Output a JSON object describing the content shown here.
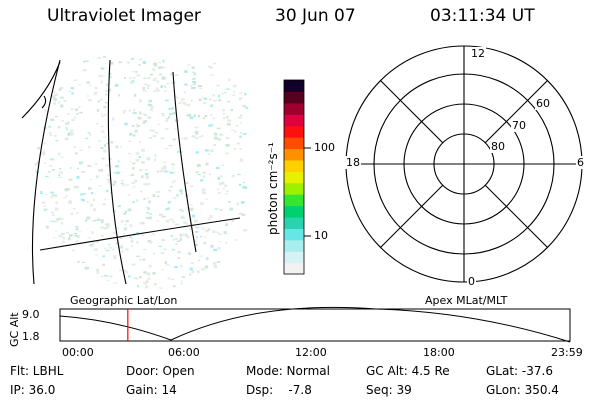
{
  "header": {
    "instrument": "Ultraviolet Imager",
    "date": "30 Jun 07",
    "time": "03:11:34 UT"
  },
  "colorbar": {
    "unit_label": "photon cm⁻²s⁻¹",
    "ticks": [
      "100",
      "10"
    ],
    "colors": [
      "#f2f2f2",
      "#d6f2f2",
      "#a8eeee",
      "#66e6e6",
      "#2ad2b0",
      "#00d070",
      "#33e633",
      "#9cf000",
      "#e6f000",
      "#ffd000",
      "#ff9000",
      "#ff4d00",
      "#ff1010",
      "#e00040",
      "#a00030",
      "#55001e",
      "#10002a"
    ]
  },
  "polar": {
    "mlt_labels": {
      "top": "12",
      "bottom": "0",
      "left": "18",
      "right": "6"
    },
    "lat_labels": [
      "60",
      "70",
      "80"
    ]
  },
  "timeline": {
    "left_label": "Geographic Lat/Lon",
    "right_label": "Apex MLat/MLT",
    "y_axis_label": "GC Alt",
    "y_max": "9.0",
    "y_min": "1.8",
    "x_ticks": [
      "00:00",
      "06:00",
      "12:00",
      "18:00",
      "23:59"
    ],
    "marker_color": "#ff0000",
    "marker_fraction": 0.133
  },
  "status": {
    "flt": "Flt: LBHL",
    "door": "Door: Open",
    "mode": "Mode: Normal",
    "gcalt": "GC Alt: 4.5 Re",
    "glat": "GLat: -37.6",
    "ip": "IP: 36.0",
    "gain": "Gain: 14",
    "dsp": "Dsp:    -7.8",
    "seq": "Seq: 39",
    "glon": "GLon: 350.4"
  }
}
